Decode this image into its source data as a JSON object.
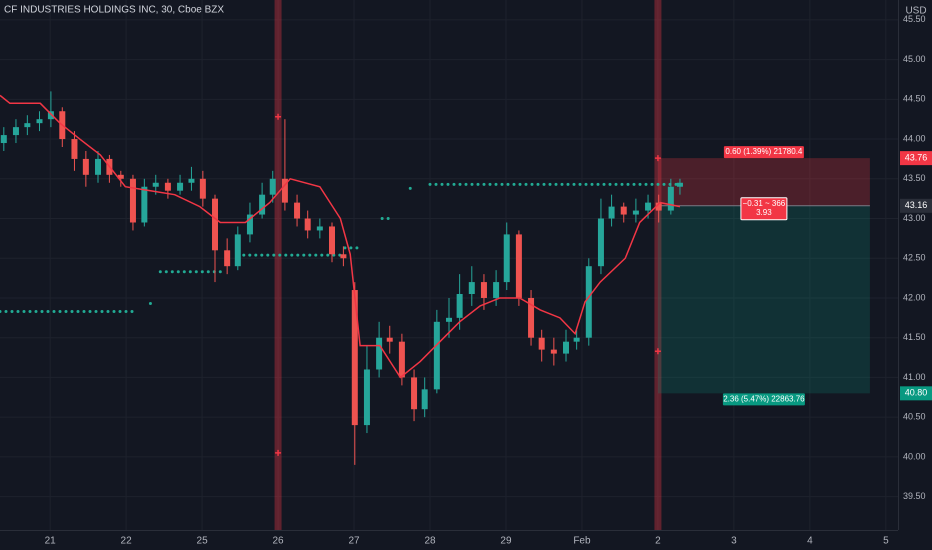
{
  "chart_data": {
    "type": "candlestick",
    "title": "CF INDUSTRIES HOLDINGS INC, 30, Cboe BZX",
    "currency": "USD",
    "up_color": "#26a69a",
    "down_color": "#ef5350",
    "xlim": [
      -0.66,
      11.16
    ],
    "ylim": [
      39.08,
      45.75
    ],
    "xticks": [
      {
        "value": 0,
        "label": "21"
      },
      {
        "value": 1,
        "label": "22"
      },
      {
        "value": 2,
        "label": "25"
      },
      {
        "value": 3,
        "label": "26"
      },
      {
        "value": 4,
        "label": "27"
      },
      {
        "value": 5,
        "label": "28"
      },
      {
        "value": 6,
        "label": "29"
      },
      {
        "value": 7,
        "label": "Feb"
      },
      {
        "value": 8,
        "label": "2"
      },
      {
        "value": 9,
        "label": "3"
      },
      {
        "value": 10,
        "label": "4"
      },
      {
        "value": 11,
        "label": "5"
      }
    ],
    "yticks": [
      {
        "value": 39.5,
        "label": "39.50"
      },
      {
        "value": 40,
        "label": "40.00"
      },
      {
        "value": 40.5,
        "label": "40.50"
      },
      {
        "value": 41,
        "label": "41.00"
      },
      {
        "value": 41.5,
        "label": "41.50"
      },
      {
        "value": 42,
        "label": "42.00"
      },
      {
        "value": 42.5,
        "label": "42.50"
      },
      {
        "value": 43,
        "label": "43.00"
      },
      {
        "value": 43.5,
        "label": "43.50"
      },
      {
        "value": 44,
        "label": "44.00"
      },
      {
        "value": 44.5,
        "label": "44.50"
      },
      {
        "value": 45,
        "label": "45.00"
      },
      {
        "value": 45.5,
        "label": "45.50"
      }
    ],
    "grid": true,
    "x": [
      -0.61,
      -0.45,
      -0.3,
      -0.14,
      0.01,
      0.16,
      0.32,
      0.47,
      0.63,
      0.78,
      0.93,
      1.09,
      1.24,
      1.39,
      1.55,
      1.71,
      1.86,
      2.01,
      2.17,
      2.33,
      2.47,
      2.63,
      2.79,
      2.93,
      3.09,
      3.25,
      3.39,
      3.55,
      3.71,
      3.86,
      4.01,
      4.17,
      4.33,
      4.47,
      4.63,
      4.79,
      4.93,
      5.09,
      5.25,
      5.39,
      5.55,
      5.71,
      5.87,
      6.01,
      6.17,
      6.33,
      6.47,
      6.63,
      6.79,
      6.93,
      7.09,
      7.25,
      7.39,
      7.55,
      7.71,
      7.87,
      8.01,
      8.17,
      8.29
    ],
    "open": [
      43.95,
      44.05,
      44.15,
      44.2,
      44.25,
      44.35,
      44.0,
      43.75,
      43.55,
      43.75,
      43.55,
      43.5,
      42.95,
      43.4,
      43.45,
      43.35,
      43.45,
      43.5,
      43.25,
      42.6,
      42.4,
      42.8,
      43.05,
      43.3,
      43.5,
      43.2,
      43.0,
      42.85,
      42.9,
      42.55,
      42.1,
      40.4,
      41.1,
      41.5,
      41.45,
      41.0,
      40.6,
      40.85,
      41.7,
      41.75,
      42.05,
      42.2,
      42.0,
      42.2,
      42.8,
      42.0,
      41.5,
      41.35,
      41.3,
      41.45,
      41.5,
      42.4,
      43.0,
      43.15,
      43.05,
      43.1,
      43.2,
      43.1,
      43.4
    ],
    "high": [
      44.15,
      44.25,
      44.3,
      44.35,
      44.6,
      44.4,
      44.1,
      43.85,
      43.85,
      43.8,
      43.6,
      43.55,
      43.5,
      43.55,
      43.5,
      43.55,
      43.65,
      43.6,
      43.3,
      42.75,
      42.9,
      43.2,
      43.45,
      43.6,
      44.25,
      43.3,
      43.1,
      43.0,
      42.95,
      42.65,
      42.2,
      41.4,
      41.7,
      41.65,
      41.55,
      41.1,
      41.0,
      41.85,
      42.0,
      42.3,
      42.4,
      42.3,
      42.35,
      42.95,
      42.85,
      42.1,
      41.6,
      41.5,
      41.6,
      41.6,
      42.5,
      43.25,
      43.3,
      43.2,
      43.25,
      43.3,
      43.3,
      43.5,
      43.5
    ],
    "low": [
      43.85,
      43.95,
      44.05,
      44.1,
      44.15,
      43.9,
      43.6,
      43.4,
      43.45,
      43.45,
      43.4,
      42.85,
      42.9,
      43.3,
      43.25,
      43.3,
      43.35,
      43.15,
      42.2,
      42.3,
      42.35,
      42.7,
      43.0,
      43.2,
      43.1,
      42.9,
      42.75,
      42.75,
      42.45,
      42.4,
      39.9,
      40.3,
      41.0,
      41.3,
      40.9,
      40.45,
      40.5,
      40.8,
      41.5,
      41.6,
      41.9,
      41.85,
      41.9,
      42.1,
      41.9,
      41.4,
      41.2,
      41.15,
      41.2,
      41.35,
      41.4,
      42.3,
      42.9,
      42.95,
      42.95,
      43.0,
      42.95,
      43.05,
      43.3
    ],
    "close": [
      44.05,
      44.15,
      44.2,
      44.25,
      44.35,
      44.0,
      43.75,
      43.55,
      43.75,
      43.55,
      43.5,
      42.95,
      43.4,
      43.45,
      43.35,
      43.45,
      43.5,
      43.25,
      42.6,
      42.4,
      42.8,
      43.05,
      43.3,
      43.5,
      43.2,
      43.0,
      42.85,
      42.9,
      42.55,
      42.5,
      40.4,
      41.1,
      41.5,
      41.45,
      41.0,
      40.6,
      40.85,
      41.7,
      41.75,
      42.05,
      42.2,
      42.0,
      42.2,
      42.8,
      42.0,
      41.5,
      41.35,
      41.3,
      41.45,
      41.5,
      42.4,
      43.0,
      43.15,
      43.05,
      43.1,
      43.2,
      43.1,
      43.4,
      43.45
    ],
    "line": {
      "color": "#f23645",
      "x": [
        -0.66,
        -0.53,
        -0.13,
        0.13,
        0.39,
        0.66,
        0.99,
        1.32,
        1.64,
        1.97,
        2.24,
        2.57,
        2.89,
        3.16,
        3.55,
        3.82,
        3.95,
        4.08,
        4.34,
        4.61,
        4.87,
        5.13,
        5.39,
        5.66,
        5.92,
        6.18,
        6.45,
        6.71,
        6.91,
        7.04,
        7.24,
        7.57,
        7.76,
        8.03,
        8.29
      ],
      "values": [
        44.55,
        44.45,
        44.45,
        44.2,
        44.0,
        43.8,
        43.4,
        43.35,
        43.3,
        43.15,
        42.95,
        42.95,
        43.2,
        43.5,
        43.4,
        43.0,
        42.55,
        41.4,
        41.4,
        41.0,
        41.2,
        41.45,
        41.7,
        41.9,
        42.0,
        42.0,
        41.85,
        41.75,
        41.55,
        41.95,
        42.2,
        42.5,
        42.95,
        43.2,
        43.15
      ]
    },
    "levels": {
      "color": "#22ab94",
      "x0": [
        -0.66,
        1.32,
        1.45,
        2.47,
        3.88,
        4.37,
        4.74,
        5.0
      ],
      "x1": [
        1.09,
        1.32,
        2.3,
        3.82,
        4.08,
        4.47,
        4.74,
        8.29
      ],
      "values": [
        41.83,
        41.93,
        42.33,
        42.54,
        42.63,
        43.0,
        43.38,
        43.43
      ]
    },
    "bands": [
      3.0,
      8.0
    ],
    "markers": {
      "x": [
        3.0,
        3.0,
        8.0,
        8.0
      ],
      "values": [
        44.28,
        40.05,
        43.76,
        41.33
      ]
    },
    "position": {
      "x0": 8.0,
      "x1": 10.79,
      "stop": 43.76,
      "entry": 43.16,
      "target": {
        "value": 40.8,
        "label": "40.80"
      },
      "stop_label": "0.60 (1.39%) 21780.4",
      "entry_label": [
        "−0.31 ~ 366",
        "3.93"
      ],
      "target_label": "2.36 (5.47%) 22863.76"
    }
  }
}
